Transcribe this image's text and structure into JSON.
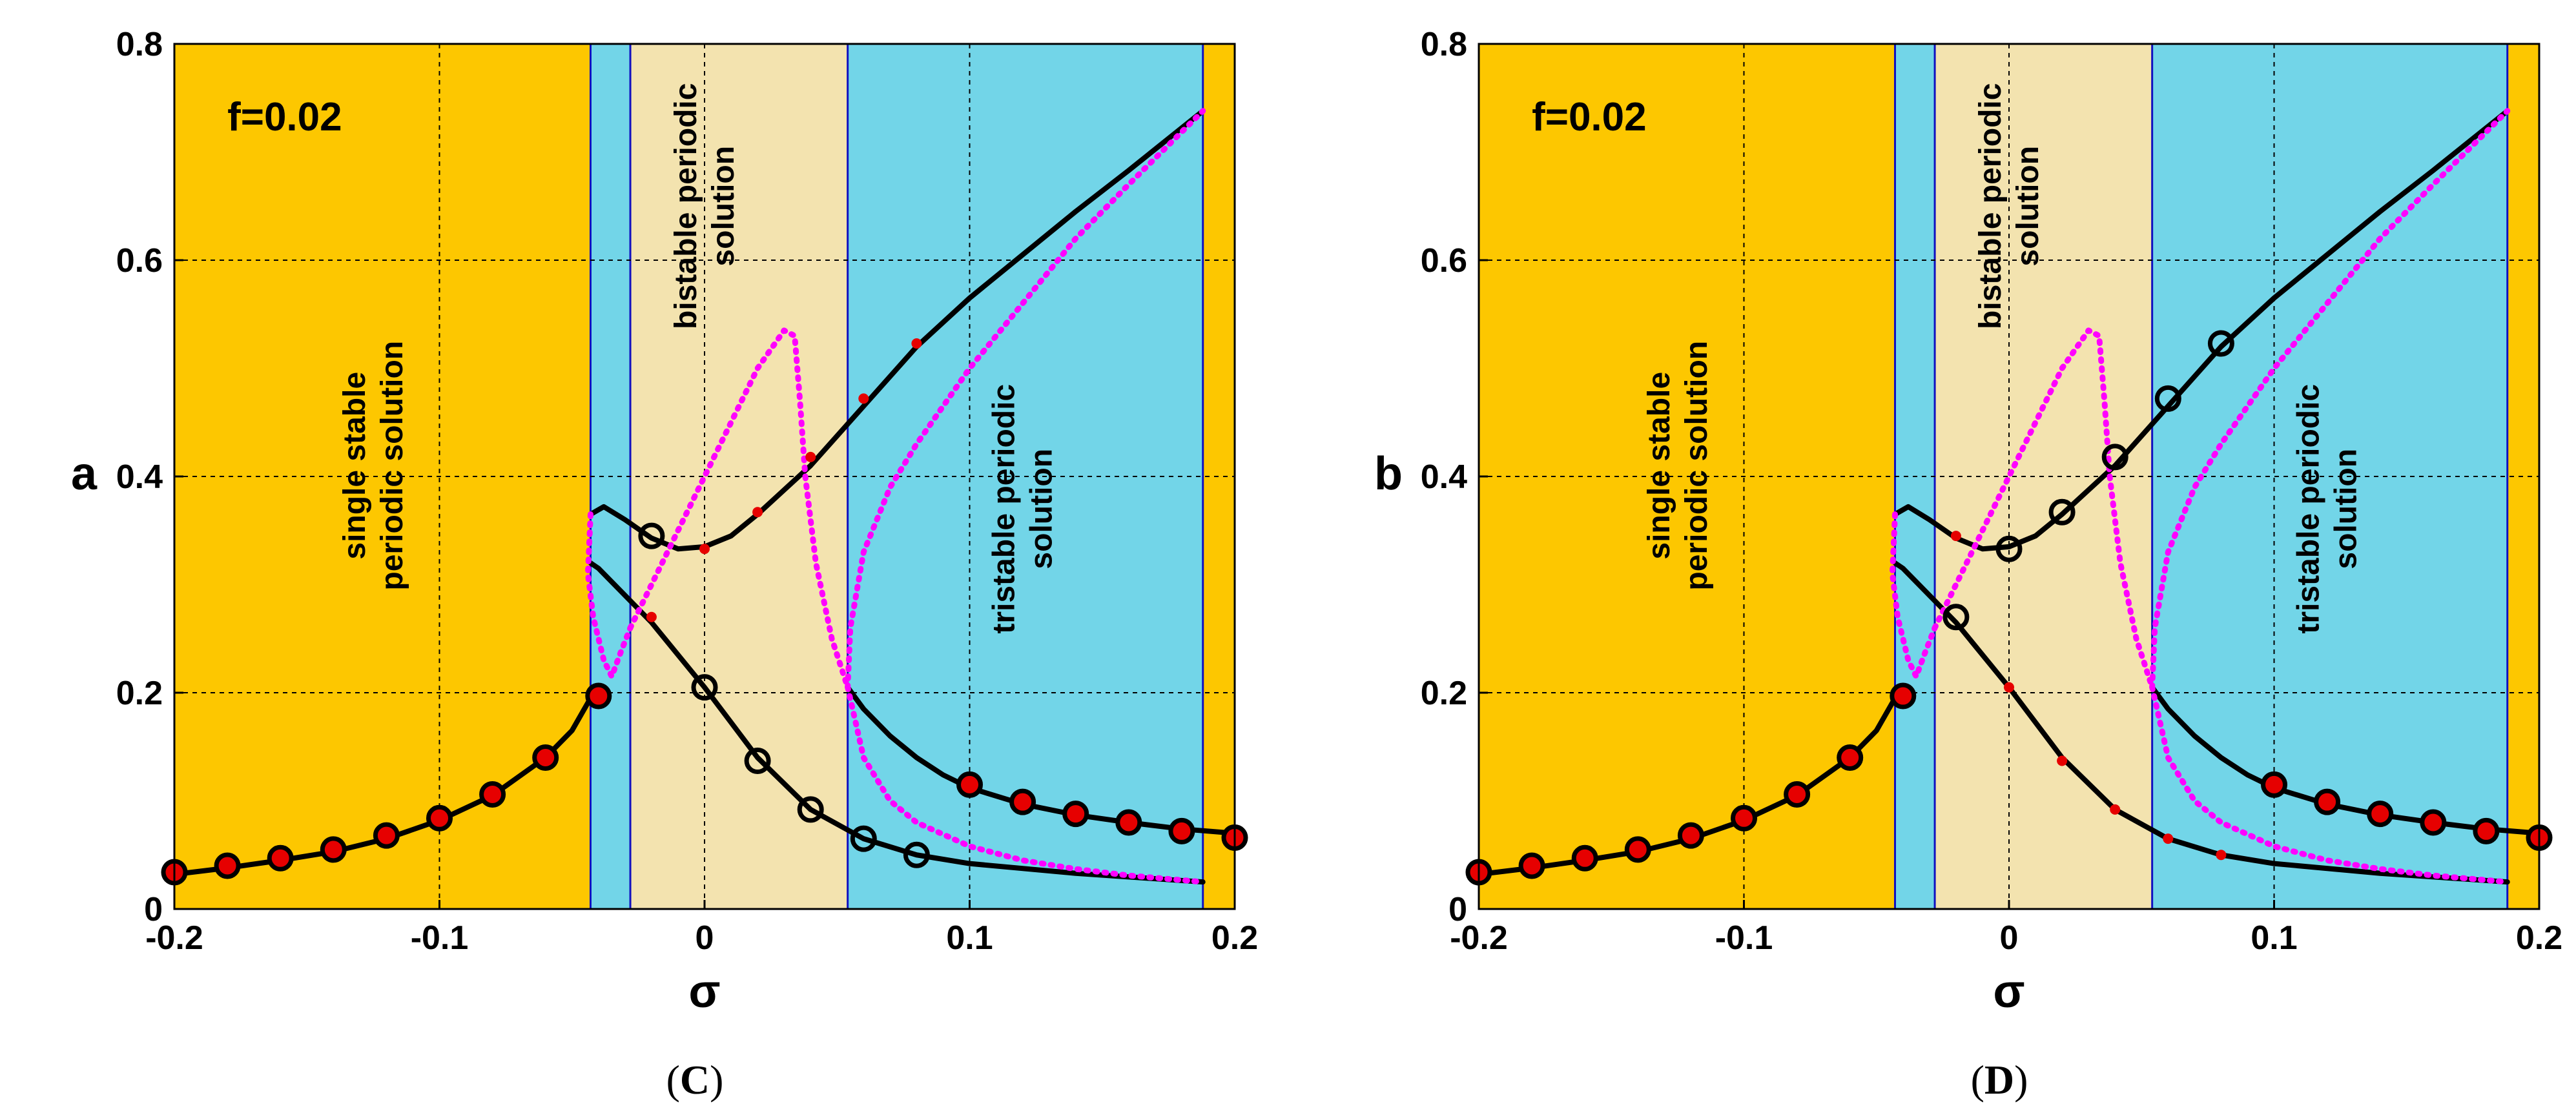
{
  "chart_data": [
    {
      "type": "line",
      "panel": "(C)",
      "caption_open": "(",
      "caption_letter": "C",
      "caption_close": ")",
      "ylabel": "a",
      "xlabel": "σ",
      "param_text": "f=0.02",
      "xlim": [
        -0.2,
        0.2
      ],
      "ylim": [
        0,
        0.8
      ],
      "xticks": [
        -0.2,
        -0.1,
        0,
        0.1,
        0.2
      ],
      "xtick_labels": [
        "-0.2",
        "-0.1",
        "0",
        "0.1",
        "0.2"
      ],
      "yticks": [
        0,
        0.2,
        0.4,
        0.6,
        0.8
      ],
      "ytick_labels": [
        "0",
        "0.2",
        "0.4",
        "0.6",
        "0.8"
      ],
      "grid": true,
      "regions": [
        {
          "name": "single-stable",
          "x0": -0.2,
          "x1": -0.043,
          "color": "#FDC700",
          "label_lines": [
            "single stable",
            "periodic solution"
          ],
          "label_x": -0.125,
          "label_y": 0.41
        },
        {
          "name": "narrow-tristable",
          "x0": -0.043,
          "x1": -0.028,
          "color": "#72D5E8",
          "label_lines": [],
          "label_x": 0,
          "label_y": 0
        },
        {
          "name": "bistable",
          "x0": -0.028,
          "x1": 0.054,
          "color": "#F3E3AF",
          "label_lines": [
            "bistable periodic",
            "solution"
          ],
          "label_x": 0,
          "label_y": 0.65
        },
        {
          "name": "tristable",
          "x0": 0.054,
          "x1": 0.188,
          "color": "#72D5E8",
          "label_lines": [
            "tristable periodic",
            "solution"
          ],
          "label_x": 0.12,
          "label_y": 0.37
        },
        {
          "name": "single-stable-right",
          "x0": 0.188,
          "x1": 0.2,
          "color": "#FDC700",
          "label_lines": [],
          "label_x": 0,
          "label_y": 0
        }
      ],
      "boundaries": [
        -0.043,
        -0.028,
        0.054,
        0.188
      ],
      "series": [
        {
          "name": "stable-lower",
          "style": "solid",
          "color": "#000000",
          "x": [
            -0.2,
            -0.18,
            -0.16,
            -0.14,
            -0.12,
            -0.1,
            -0.08,
            -0.06,
            -0.05,
            -0.043
          ],
          "y": [
            0.032,
            0.038,
            0.045,
            0.053,
            0.065,
            0.082,
            0.105,
            0.14,
            0.165,
            0.195
          ]
        },
        {
          "name": "stable-lower-branch",
          "style": "solid",
          "color": "#000000",
          "x": [
            -0.043,
            -0.04,
            -0.02,
            0,
            0.02,
            0.04,
            0.06,
            0.08,
            0.1,
            0.14,
            0.188
          ],
          "y": [
            0.32,
            0.315,
            0.265,
            0.205,
            0.14,
            0.092,
            0.065,
            0.05,
            0.042,
            0.033,
            0.025
          ]
        },
        {
          "name": "stable-upper",
          "style": "solid",
          "color": "#000000",
          "x": [
            -0.043,
            -0.038,
            -0.03,
            -0.02,
            -0.01,
            0,
            0.01,
            0.02,
            0.04,
            0.06,
            0.08,
            0.1,
            0.12,
            0.14,
            0.16,
            0.188
          ],
          "y": [
            0.365,
            0.372,
            0.36,
            0.343,
            0.333,
            0.335,
            0.345,
            0.365,
            0.41,
            0.465,
            0.52,
            0.565,
            0.605,
            0.645,
            0.683,
            0.738
          ]
        },
        {
          "name": "stable-high-lower",
          "style": "solid",
          "color": "#000000",
          "x": [
            0.054,
            0.06,
            0.07,
            0.08,
            0.09,
            0.1,
            0.12,
            0.14,
            0.16,
            0.18,
            0.2
          ],
          "y": [
            0.205,
            0.185,
            0.16,
            0.14,
            0.124,
            0.112,
            0.097,
            0.087,
            0.08,
            0.074,
            0.07
          ]
        },
        {
          "name": "unstable-left-loop",
          "style": "dotted",
          "color": "#FF00FF",
          "x": [
            -0.043,
            -0.044,
            -0.042,
            -0.038,
            -0.035,
            -0.032,
            -0.028
          ],
          "y": [
            0.365,
            0.31,
            0.27,
            0.23,
            0.215,
            0.235,
            0.26
          ]
        },
        {
          "name": "unstable-middle",
          "style": "dotted",
          "color": "#FF00FF",
          "x": [
            -0.028,
            -0.02,
            -0.01,
            0,
            0.01,
            0.02,
            0.03,
            0.034,
            0.036,
            0.038,
            0.042,
            0.048,
            0.054
          ],
          "y": [
            0.26,
            0.3,
            0.35,
            0.4,
            0.45,
            0.5,
            0.535,
            0.53,
            0.47,
            0.4,
            0.32,
            0.25,
            0.205
          ]
        },
        {
          "name": "unstable-right-upper",
          "style": "dotted",
          "color": "#FF00FF",
          "x": [
            0.054,
            0.055,
            0.06,
            0.07,
            0.08,
            0.1,
            0.12,
            0.14,
            0.16,
            0.188
          ],
          "y": [
            0.205,
            0.26,
            0.33,
            0.39,
            0.43,
            0.5,
            0.56,
            0.62,
            0.67,
            0.738
          ]
        },
        {
          "name": "unstable-right-lower",
          "style": "dotted",
          "color": "#FF00FF",
          "x": [
            0.054,
            0.06,
            0.07,
            0.08,
            0.1,
            0.12,
            0.14,
            0.16,
            0.188
          ],
          "y": [
            0.205,
            0.14,
            0.1,
            0.08,
            0.058,
            0.045,
            0.037,
            0.031,
            0.025
          ]
        }
      ],
      "markers": [
        {
          "x": -0.2,
          "y": 0.034,
          "kind": "red-ring"
        },
        {
          "x": -0.18,
          "y": 0.04,
          "kind": "red-ring"
        },
        {
          "x": -0.16,
          "y": 0.047,
          "kind": "red-ring"
        },
        {
          "x": -0.14,
          "y": 0.055,
          "kind": "red-ring"
        },
        {
          "x": -0.12,
          "y": 0.068,
          "kind": "red-ring"
        },
        {
          "x": -0.1,
          "y": 0.084,
          "kind": "red-ring"
        },
        {
          "x": -0.08,
          "y": 0.106,
          "kind": "red-ring"
        },
        {
          "x": -0.06,
          "y": 0.14,
          "kind": "red-ring"
        },
        {
          "x": -0.04,
          "y": 0.197,
          "kind": "red-ring"
        },
        {
          "x": -0.02,
          "y": 0.345,
          "kind": "open-ring"
        },
        {
          "x": 0,
          "y": 0.205,
          "kind": "open-ring"
        },
        {
          "x": 0.02,
          "y": 0.137,
          "kind": "open-ring"
        },
        {
          "x": 0.04,
          "y": 0.092,
          "kind": "open-ring"
        },
        {
          "x": 0.06,
          "y": 0.065,
          "kind": "open-ring"
        },
        {
          "x": 0.08,
          "y": 0.05,
          "kind": "open-ring"
        },
        {
          "x": -0.02,
          "y": 0.27,
          "kind": "red-dot"
        },
        {
          "x": 0,
          "y": 0.333,
          "kind": "red-dot"
        },
        {
          "x": 0.02,
          "y": 0.367,
          "kind": "red-dot"
        },
        {
          "x": 0.04,
          "y": 0.418,
          "kind": "red-dot"
        },
        {
          "x": 0.06,
          "y": 0.472,
          "kind": "red-dot"
        },
        {
          "x": 0.08,
          "y": 0.523,
          "kind": "red-dot"
        },
        {
          "x": 0.1,
          "y": 0.115,
          "kind": "red-ring"
        },
        {
          "x": 0.12,
          "y": 0.099,
          "kind": "red-ring"
        },
        {
          "x": 0.14,
          "y": 0.088,
          "kind": "red-ring"
        },
        {
          "x": 0.16,
          "y": 0.08,
          "kind": "red-ring"
        },
        {
          "x": 0.18,
          "y": 0.072,
          "kind": "red-ring"
        },
        {
          "x": 0.2,
          "y": 0.066,
          "kind": "red-ring"
        }
      ]
    },
    {
      "type": "line",
      "panel": "(D)",
      "caption_open": "(",
      "caption_letter": "D",
      "caption_close": ")",
      "ylabel": "b",
      "xlabel": "σ",
      "param_text": "f=0.02",
      "xlim": [
        -0.2,
        0.2
      ],
      "ylim": [
        0,
        0.8
      ],
      "xticks": [
        -0.2,
        -0.1,
        0,
        0.1,
        0.2
      ],
      "xtick_labels": [
        "-0.2",
        "-0.1",
        "0",
        "0.1",
        "0.2"
      ],
      "yticks": [
        0,
        0.2,
        0.4,
        0.6,
        0.8
      ],
      "ytick_labels": [
        "0",
        "0.2",
        "0.4",
        "0.6",
        "0.8"
      ],
      "grid": true,
      "regions": [
        {
          "name": "single-stable",
          "x0": -0.2,
          "x1": -0.043,
          "color": "#FDC700",
          "label_lines": [
            "single stable",
            "periodic solution"
          ],
          "label_x": -0.125,
          "label_y": 0.41
        },
        {
          "name": "narrow-tristable",
          "x0": -0.043,
          "x1": -0.028,
          "color": "#72D5E8",
          "label_lines": [],
          "label_x": 0,
          "label_y": 0
        },
        {
          "name": "bistable",
          "x0": -0.028,
          "x1": 0.054,
          "color": "#F3E3AF",
          "label_lines": [
            "bistable periodic",
            "solution"
          ],
          "label_x": 0,
          "label_y": 0.65
        },
        {
          "name": "tristable",
          "x0": 0.054,
          "x1": 0.188,
          "color": "#72D5E8",
          "label_lines": [
            "tristable periodic",
            "solution"
          ],
          "label_x": 0.12,
          "label_y": 0.37
        },
        {
          "name": "single-stable-right",
          "x0": 0.188,
          "x1": 0.2,
          "color": "#FDC700",
          "label_lines": [],
          "label_x": 0,
          "label_y": 0
        }
      ],
      "boundaries": [
        -0.043,
        -0.028,
        0.054,
        0.188
      ],
      "series": [
        {
          "name": "stable-lower",
          "style": "solid",
          "color": "#000000",
          "x": [
            -0.2,
            -0.18,
            -0.16,
            -0.14,
            -0.12,
            -0.1,
            -0.08,
            -0.06,
            -0.05,
            -0.043
          ],
          "y": [
            0.032,
            0.038,
            0.045,
            0.053,
            0.065,
            0.082,
            0.105,
            0.14,
            0.165,
            0.195
          ]
        },
        {
          "name": "stable-lower-branch",
          "style": "solid",
          "color": "#000000",
          "x": [
            -0.043,
            -0.04,
            -0.02,
            0,
            0.02,
            0.04,
            0.06,
            0.08,
            0.1,
            0.14,
            0.188
          ],
          "y": [
            0.32,
            0.315,
            0.265,
            0.205,
            0.14,
            0.092,
            0.065,
            0.05,
            0.042,
            0.033,
            0.025
          ]
        },
        {
          "name": "stable-upper",
          "style": "solid",
          "color": "#000000",
          "x": [
            -0.043,
            -0.038,
            -0.03,
            -0.02,
            -0.01,
            0,
            0.01,
            0.02,
            0.04,
            0.06,
            0.08,
            0.1,
            0.12,
            0.14,
            0.16,
            0.188
          ],
          "y": [
            0.365,
            0.372,
            0.36,
            0.343,
            0.333,
            0.335,
            0.345,
            0.365,
            0.41,
            0.465,
            0.52,
            0.565,
            0.605,
            0.645,
            0.683,
            0.738
          ]
        },
        {
          "name": "stable-high-lower",
          "style": "solid",
          "color": "#000000",
          "x": [
            0.054,
            0.06,
            0.07,
            0.08,
            0.09,
            0.1,
            0.12,
            0.14,
            0.16,
            0.18,
            0.2
          ],
          "y": [
            0.205,
            0.185,
            0.16,
            0.14,
            0.124,
            0.112,
            0.097,
            0.087,
            0.08,
            0.074,
            0.07
          ]
        },
        {
          "name": "unstable-left-loop",
          "style": "dotted",
          "color": "#FF00FF",
          "x": [
            -0.043,
            -0.044,
            -0.042,
            -0.038,
            -0.035,
            -0.032,
            -0.028
          ],
          "y": [
            0.365,
            0.31,
            0.27,
            0.23,
            0.215,
            0.235,
            0.26
          ]
        },
        {
          "name": "unstable-middle",
          "style": "dotted",
          "color": "#FF00FF",
          "x": [
            -0.028,
            -0.02,
            -0.01,
            0,
            0.01,
            0.02,
            0.03,
            0.034,
            0.036,
            0.038,
            0.042,
            0.048,
            0.054
          ],
          "y": [
            0.26,
            0.3,
            0.35,
            0.4,
            0.45,
            0.5,
            0.535,
            0.53,
            0.47,
            0.4,
            0.32,
            0.25,
            0.205
          ]
        },
        {
          "name": "unstable-right-upper",
          "style": "dotted",
          "color": "#FF00FF",
          "x": [
            0.054,
            0.055,
            0.06,
            0.07,
            0.08,
            0.1,
            0.12,
            0.14,
            0.16,
            0.188
          ],
          "y": [
            0.205,
            0.26,
            0.33,
            0.39,
            0.43,
            0.5,
            0.56,
            0.62,
            0.67,
            0.738
          ]
        },
        {
          "name": "unstable-right-lower",
          "style": "dotted",
          "color": "#FF00FF",
          "x": [
            0.054,
            0.06,
            0.07,
            0.08,
            0.1,
            0.12,
            0.14,
            0.16,
            0.188
          ],
          "y": [
            0.205,
            0.14,
            0.1,
            0.08,
            0.058,
            0.045,
            0.037,
            0.031,
            0.025
          ]
        }
      ],
      "markers": [
        {
          "x": -0.2,
          "y": 0.034,
          "kind": "red-ring"
        },
        {
          "x": -0.18,
          "y": 0.04,
          "kind": "red-ring"
        },
        {
          "x": -0.16,
          "y": 0.047,
          "kind": "red-ring"
        },
        {
          "x": -0.14,
          "y": 0.055,
          "kind": "red-ring"
        },
        {
          "x": -0.12,
          "y": 0.068,
          "kind": "red-ring"
        },
        {
          "x": -0.1,
          "y": 0.084,
          "kind": "red-ring"
        },
        {
          "x": -0.08,
          "y": 0.106,
          "kind": "red-ring"
        },
        {
          "x": -0.06,
          "y": 0.14,
          "kind": "red-ring"
        },
        {
          "x": -0.04,
          "y": 0.197,
          "kind": "red-ring"
        },
        {
          "x": -0.02,
          "y": 0.27,
          "kind": "open-ring"
        },
        {
          "x": 0,
          "y": 0.333,
          "kind": "open-ring"
        },
        {
          "x": 0.02,
          "y": 0.367,
          "kind": "open-ring"
        },
        {
          "x": 0.04,
          "y": 0.418,
          "kind": "open-ring"
        },
        {
          "x": 0.06,
          "y": 0.472,
          "kind": "open-ring"
        },
        {
          "x": 0.08,
          "y": 0.523,
          "kind": "open-ring"
        },
        {
          "x": -0.02,
          "y": 0.345,
          "kind": "red-dot"
        },
        {
          "x": 0,
          "y": 0.205,
          "kind": "red-dot"
        },
        {
          "x": 0.02,
          "y": 0.137,
          "kind": "red-dot"
        },
        {
          "x": 0.04,
          "y": 0.092,
          "kind": "red-dot"
        },
        {
          "x": 0.06,
          "y": 0.065,
          "kind": "red-dot"
        },
        {
          "x": 0.08,
          "y": 0.05,
          "kind": "red-dot"
        },
        {
          "x": 0.1,
          "y": 0.115,
          "kind": "red-ring"
        },
        {
          "x": 0.12,
          "y": 0.099,
          "kind": "red-ring"
        },
        {
          "x": 0.14,
          "y": 0.088,
          "kind": "red-ring"
        },
        {
          "x": 0.16,
          "y": 0.08,
          "kind": "red-ring"
        },
        {
          "x": 0.18,
          "y": 0.072,
          "kind": "red-ring"
        },
        {
          "x": 0.2,
          "y": 0.066,
          "kind": "red-ring"
        }
      ]
    }
  ]
}
